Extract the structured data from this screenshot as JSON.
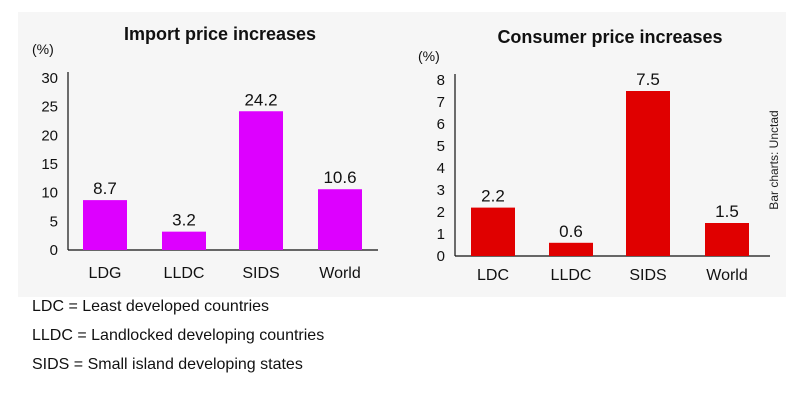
{
  "credit": "Bar charts: Unctad",
  "legend": [
    "LDC = Least developed countries",
    "LLDC = Landlocked developing countries",
    "SIDS = Small island developing states"
  ],
  "chart_data": [
    {
      "type": "bar",
      "title": "Import price increases",
      "ylabel": "(%)",
      "categories": [
        "LDG",
        "LLDC",
        "SIDS",
        "World"
      ],
      "values": [
        8.7,
        3.2,
        24.2,
        10.6
      ],
      "value_labels": [
        "8.7",
        "3.2",
        "24.2",
        "10.6"
      ],
      "yticks": [
        0,
        5,
        10,
        15,
        20,
        25,
        30
      ],
      "ylim": [
        0,
        30
      ],
      "color": "#dd00ff",
      "grid": false
    },
    {
      "type": "bar",
      "title": "Consumer price increases",
      "ylabel": "(%)",
      "categories": [
        "LDC",
        "LLDC",
        "SIDS",
        "World"
      ],
      "values": [
        2.2,
        0.6,
        7.5,
        1.5
      ],
      "value_labels": [
        "2.2",
        "0.6",
        "7.5",
        "1.5"
      ],
      "yticks": [
        0,
        1,
        2,
        3,
        4,
        5,
        6,
        7,
        8
      ],
      "ylim": [
        0,
        8
      ],
      "color": "#e00000",
      "grid": false
    }
  ]
}
